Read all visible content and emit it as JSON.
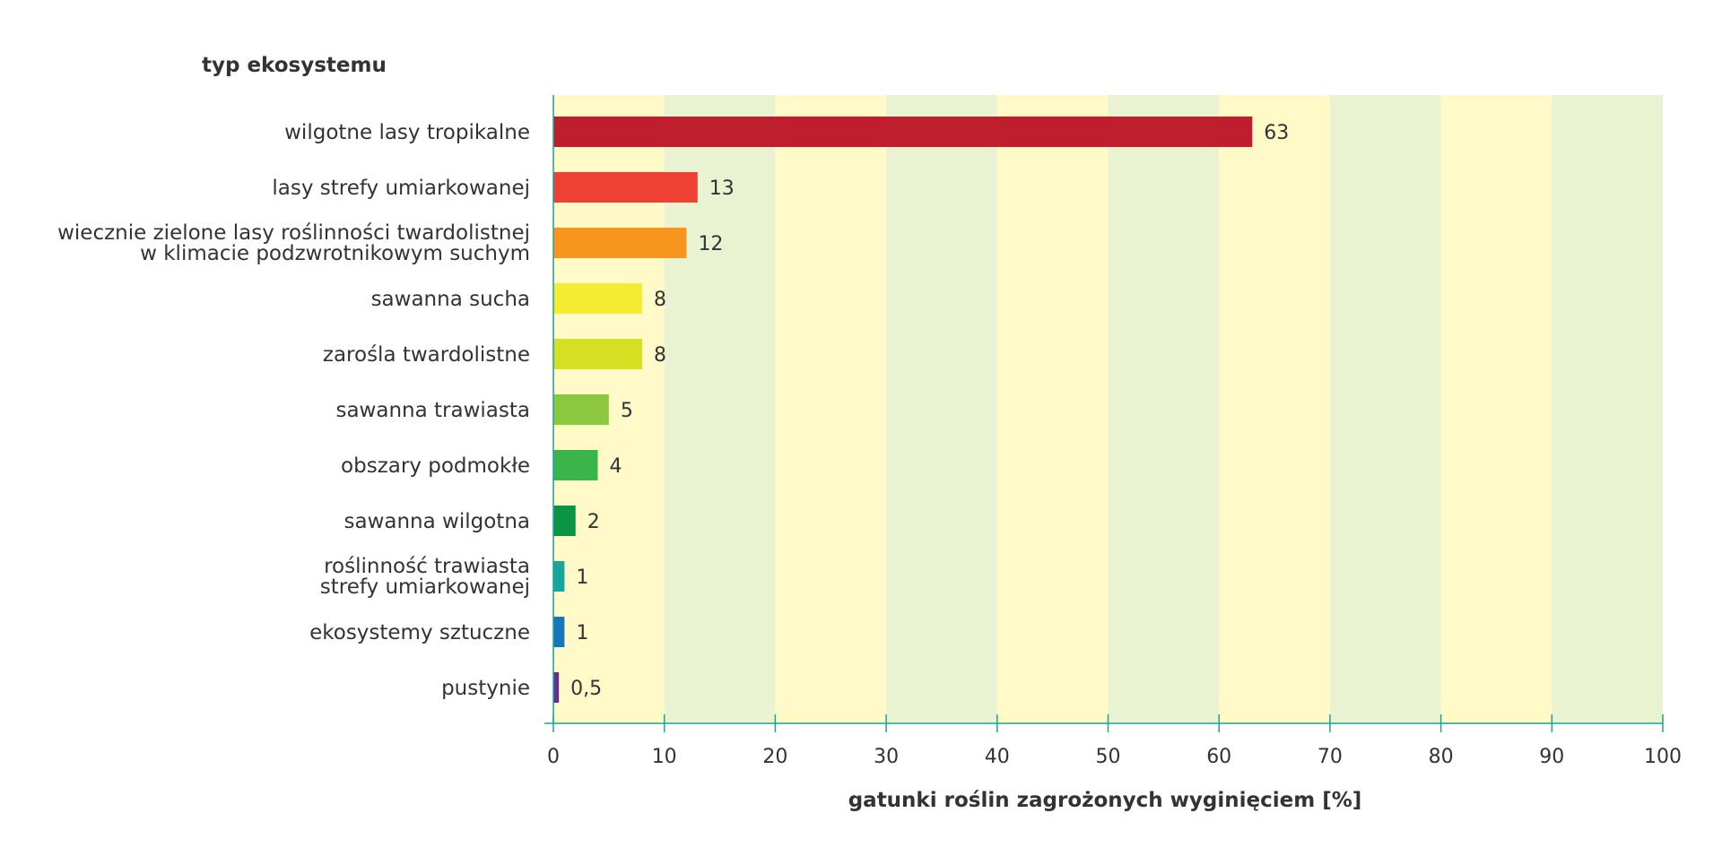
{
  "chart_data": {
    "type": "bar",
    "orientation": "horizontal",
    "y_title": "typ ekosystemu",
    "xlabel": "gatunki roślin zagrożonych wyginięciem [%]",
    "xlim": [
      0,
      100
    ],
    "xticks": [
      "0",
      "10",
      "20",
      "30",
      "40",
      "50",
      "60",
      "70",
      "80",
      "90",
      "100"
    ],
    "categories": [
      [
        "wilgotne lasy tropikalne"
      ],
      [
        "lasy strefy umiarkowanej"
      ],
      [
        "wiecznie zielone lasy roślinności twardolistnej",
        "w klimacie podzwrotnikowym suchym"
      ],
      [
        "sawanna sucha"
      ],
      [
        "zarośla twardolistne"
      ],
      [
        "sawanna trawiasta"
      ],
      [
        "obszary podmokłe"
      ],
      [
        "sawanna wilgotna"
      ],
      [
        "roślinność trawiasta",
        "strefy umiarkowanej"
      ],
      [
        "ekosystemy sztuczne"
      ],
      [
        "pustynie"
      ]
    ],
    "values": [
      63,
      13,
      12,
      8,
      8,
      5,
      4,
      2,
      1,
      1,
      0.5
    ],
    "value_labels": [
      "63",
      "13",
      "12",
      "8",
      "8",
      "5",
      "4",
      "2",
      "1",
      "1",
      "0,5"
    ],
    "bar_colors": [
      "#be1e2d",
      "#ee4035",
      "#f7941d",
      "#f4ec33",
      "#d7df23",
      "#8dc63f",
      "#39b54a",
      "#0b9444",
      "#16a69c",
      "#1b75bb",
      "#662d91"
    ],
    "band_colors": [
      "#fffac8",
      "#eaf3d1"
    ],
    "axis_color": "#1aa39a"
  }
}
